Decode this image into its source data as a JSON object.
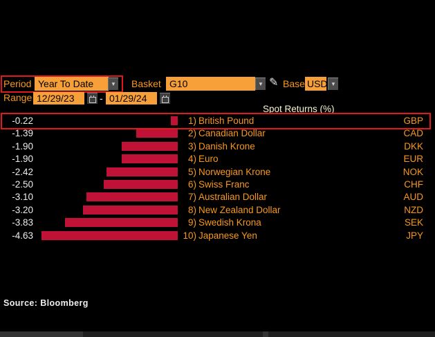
{
  "screen": {
    "background": "#000000"
  },
  "controls": {
    "period": {
      "label": "Period",
      "value": "Year To Date"
    },
    "basket": {
      "label": "Basket",
      "value": "G10"
    },
    "base": {
      "label": "Base",
      "value": "USD"
    },
    "range": {
      "label": "Range",
      "start_date": "12/29/23",
      "separator": "-",
      "end_date": "01/29/24"
    }
  },
  "icons": {
    "dropdown_arrow": "▼",
    "pencil": "✎"
  },
  "chart_data": {
    "type": "bar",
    "orientation": "horizontal",
    "title": "Spot Returns (%)",
    "value_unit": "%",
    "xlim": [
      -4.63,
      0
    ],
    "bar_color": "#c01236",
    "legend": "none",
    "rows": [
      {
        "rank": "1)",
        "name": "British Pound",
        "ticker": "GBP",
        "value": -0.22,
        "highlighted": true
      },
      {
        "rank": "2)",
        "name": "Canadian Dollar",
        "ticker": "CAD",
        "value": -1.39,
        "highlighted": false
      },
      {
        "rank": "3)",
        "name": "Danish Krone",
        "ticker": "DKK",
        "value": -1.9,
        "highlighted": false
      },
      {
        "rank": "4)",
        "name": "Euro",
        "ticker": "EUR",
        "value": -1.9,
        "highlighted": false
      },
      {
        "rank": "5)",
        "name": "Norwegian Krone",
        "ticker": "NOK",
        "value": -2.42,
        "highlighted": false
      },
      {
        "rank": "6)",
        "name": "Swiss Franc",
        "ticker": "CHF",
        "value": -2.5,
        "highlighted": false
      },
      {
        "rank": "7)",
        "name": "Australian Dollar",
        "ticker": "AUD",
        "value": -3.1,
        "highlighted": false
      },
      {
        "rank": "8)",
        "name": "New Zealand Dollar",
        "ticker": "NZD",
        "value": -3.2,
        "highlighted": false
      },
      {
        "rank": "9)",
        "name": "Swedish Krona",
        "ticker": "SEK",
        "value": -3.83,
        "highlighted": false
      },
      {
        "rank": "10)",
        "name": "Japanese Yen",
        "ticker": "JPY",
        "value": -4.63,
        "highlighted": false
      }
    ]
  },
  "annotations": {
    "color": "#e0191c",
    "items": [
      "period-control-highlight",
      "british-pound-row-highlight"
    ]
  },
  "footer": {
    "source": "Source: Bloomberg"
  },
  "colors": {
    "accent_orange": "#f7a03a",
    "label_orange": "#f8981d",
    "bar_red": "#c01236",
    "annotation_red": "#e0191c",
    "title_cream": "#f5f5cd",
    "value_white": "#ededed"
  }
}
